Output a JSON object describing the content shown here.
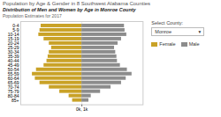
{
  "chart_data": {
    "type": "bar",
    "orientation": "horizontal",
    "title": "Population by Age & Gender in 8 Southwest Alabama Counties",
    "subtitle": "Distribution of Men and Women by Age in Monroe County",
    "annotations": [
      "Population Estimates for 2017",
      "Select County:",
      "Monroe",
      "▾"
    ],
    "categories": [
      "85+",
      "80-84",
      "75-79",
      "70-74",
      "65-69",
      "60-64",
      "55-59",
      "50-54",
      "45-49",
      "40-44",
      "35-39",
      "30-34",
      "25-29",
      "20-24",
      "15-19",
      "10-14",
      "5-9",
      "0-4"
    ],
    "series": [
      {
        "name": "Female",
        "color": "#C9A227",
        "values": [
          -160,
          -220,
          -380,
          -560,
          -720,
          -800,
          -850,
          -780,
          -650,
          -600,
          -580,
          -560,
          -520,
          -560,
          -650,
          -740,
          -720,
          -700
        ]
      },
      {
        "name": "Male",
        "color": "#8C8C8C",
        "values": [
          120,
          160,
          320,
          500,
          680,
          760,
          860,
          780,
          660,
          610,
          600,
          580,
          560,
          620,
          680,
          770,
          740,
          730
        ]
      }
    ],
    "xlim": [
      -1050,
      1050
    ],
    "xticks": [
      {
        "value": 0,
        "label": "0k, 1k"
      }
    ],
    "grid": true
  }
}
